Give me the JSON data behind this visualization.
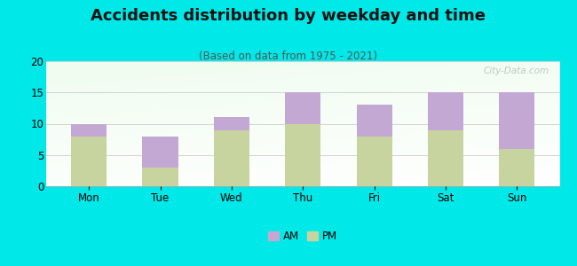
{
  "title": "Accidents distribution by weekday and time",
  "subtitle": "(Based on data from 1975 - 2021)",
  "categories": [
    "Mon",
    "Tue",
    "Wed",
    "Thu",
    "Fri",
    "Sat",
    "Sun"
  ],
  "pm_values": [
    8,
    3,
    9,
    10,
    8,
    9,
    6
  ],
  "am_values": [
    2,
    5,
    2,
    5,
    5,
    6,
    9
  ],
  "am_color": "#c4a8d4",
  "pm_color": "#c8d4a0",
  "background_color": "#00e8e8",
  "ylim": [
    0,
    20
  ],
  "yticks": [
    0,
    5,
    10,
    15,
    20
  ],
  "watermark": "City-Data.com",
  "legend_am": "AM",
  "legend_pm": "PM",
  "title_fontsize": 13,
  "subtitle_fontsize": 8.5,
  "tick_fontsize": 8.5,
  "bar_width": 0.5
}
